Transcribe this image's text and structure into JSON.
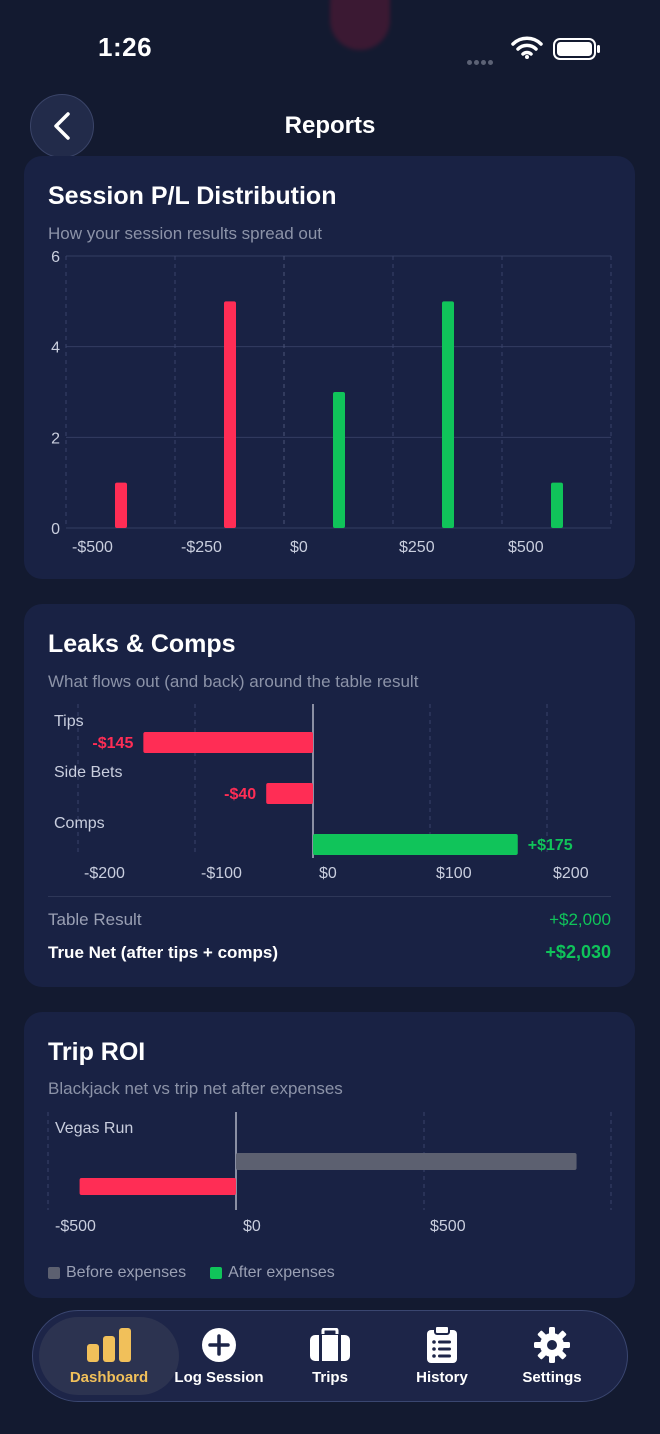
{
  "status": {
    "time": "1:26"
  },
  "header": {
    "title": "Reports"
  },
  "distribution": {
    "title": "Session P/L Distribution",
    "subtitle": "How your session results spread out",
    "chart_data": {
      "type": "bar",
      "bins": [
        -500,
        -250,
        0,
        250,
        500
      ],
      "x_tick_labels": [
        "-$500",
        "-$250",
        "$0",
        "$250",
        "$500"
      ],
      "y_tick_labels": [
        "0",
        "2",
        "4",
        "6"
      ],
      "ylim": [
        0,
        6
      ],
      "series": [
        {
          "category": "-$500",
          "value": 1,
          "color": "#ff2d55"
        },
        {
          "category": "-$250",
          "value": 5,
          "color": "#ff2d55"
        },
        {
          "category": "$0",
          "value": 3,
          "color": "#10c45a"
        },
        {
          "category": "$250",
          "value": 5,
          "color": "#10c45a"
        },
        {
          "category": "$500",
          "value": 1,
          "color": "#10c45a"
        }
      ]
    }
  },
  "leaks": {
    "title": "Leaks & Comps",
    "subtitle": "What flows out (and back) around the table result",
    "chart_data": {
      "type": "bar",
      "orientation": "horizontal",
      "xlim": [
        -200,
        200
      ],
      "x_tick_labels": [
        "-$200",
        "-$100",
        "$0",
        "$100",
        "$200"
      ],
      "rows": [
        {
          "label": "Tips",
          "value": -145,
          "value_label": "-$145",
          "color": "#ff2d55"
        },
        {
          "label": "Side Bets",
          "value": -40,
          "value_label": "-$40",
          "color": "#ff2d55"
        },
        {
          "label": "Comps",
          "value": 175,
          "value_label": "+$175",
          "color": "#10c45a"
        }
      ]
    },
    "table_result_label": "Table Result",
    "table_result_value": "+$2,000",
    "true_net_label": "True Net (after tips + comps)",
    "true_net_value": "+$2,030"
  },
  "roi": {
    "title": "Trip ROI",
    "subtitle": "Blackjack net vs trip net after expenses",
    "chart_data": {
      "type": "bar",
      "orientation": "horizontal",
      "xlim": [
        -660,
        1000
      ],
      "x_tick_labels": [
        "-$500",
        "$0",
        "$500"
      ],
      "category": "Vegas Run",
      "series": [
        {
          "name": "Before expenses",
          "value": 860,
          "color": "#5c6070"
        },
        {
          "name": "After expenses",
          "value": -395,
          "color": "#ff2d55"
        }
      ]
    },
    "legend": [
      "Before expenses",
      "After expenses"
    ]
  },
  "tabs": [
    {
      "label": "Dashboard",
      "icon": "bar-chart-icon",
      "active": true
    },
    {
      "label": "Log Session",
      "icon": "plus-circle-icon",
      "active": false
    },
    {
      "label": "Trips",
      "icon": "briefcase-icon",
      "active": false
    },
    {
      "label": "History",
      "icon": "clipboard-icon",
      "active": false
    },
    {
      "label": "Settings",
      "icon": "gear-icon",
      "active": false
    }
  ],
  "colors": {
    "background": "#131a30",
    "card": "#192244",
    "loss": "#ff2d55",
    "win": "#10c45a",
    "accent": "#f1c05a"
  }
}
